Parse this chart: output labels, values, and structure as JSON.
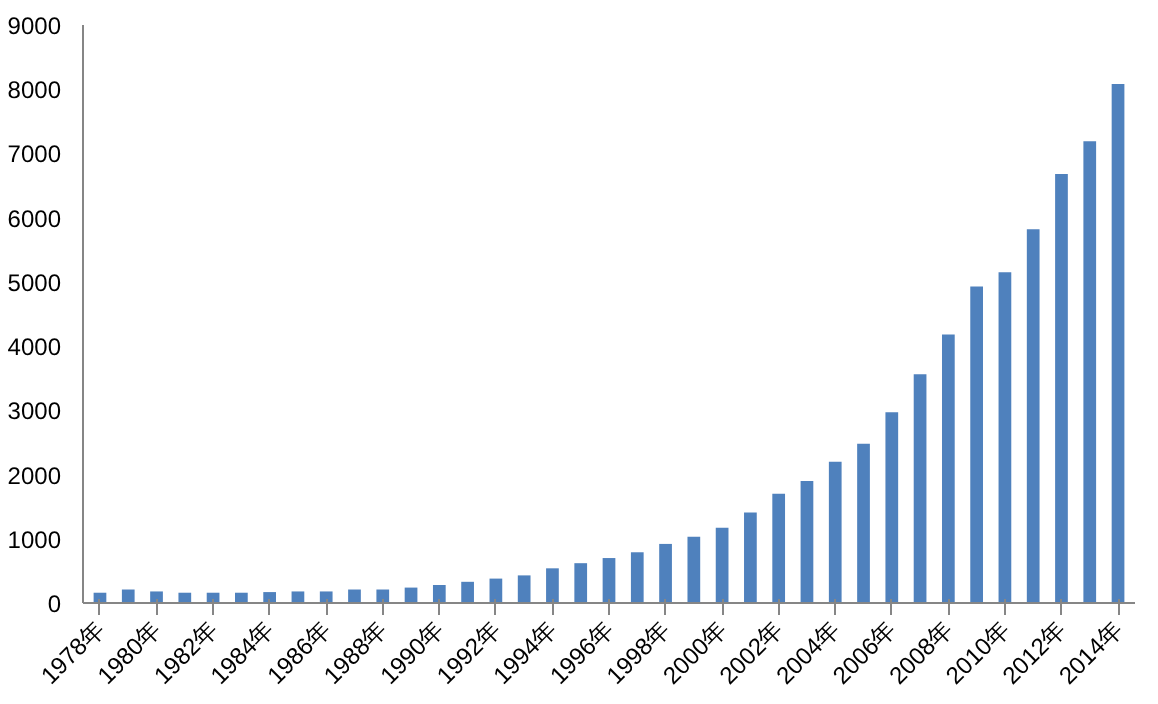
{
  "chart_data": {
    "type": "bar",
    "color": "#4f81bd",
    "categories": [
      "1978年",
      null,
      "1980年",
      null,
      "1982年",
      null,
      "1984年",
      null,
      "1986年",
      null,
      "1988年",
      null,
      "1990年",
      null,
      "1992年",
      null,
      "1994年",
      null,
      "1996年",
      null,
      "1998年",
      null,
      "2000年",
      null,
      "2002年",
      null,
      "2004年",
      null,
      "2006年",
      null,
      "2008年",
      null,
      "2010年",
      null,
      "2012年",
      null,
      "2014年"
    ],
    "values": [
      160,
      210,
      180,
      160,
      160,
      160,
      170,
      180,
      180,
      210,
      210,
      240,
      280,
      330,
      380,
      430,
      540,
      620,
      700,
      790,
      920,
      1030,
      1170,
      1410,
      1700,
      1900,
      2200,
      2480,
      2970,
      3560,
      4180,
      4930,
      5150,
      5820,
      6680,
      7190,
      8080
    ],
    "ylim": [
      0,
      9000
    ],
    "yticks": [
      0,
      1000,
      2000,
      3000,
      4000,
      5000,
      6000,
      7000,
      8000,
      9000
    ],
    "grid": false
  }
}
